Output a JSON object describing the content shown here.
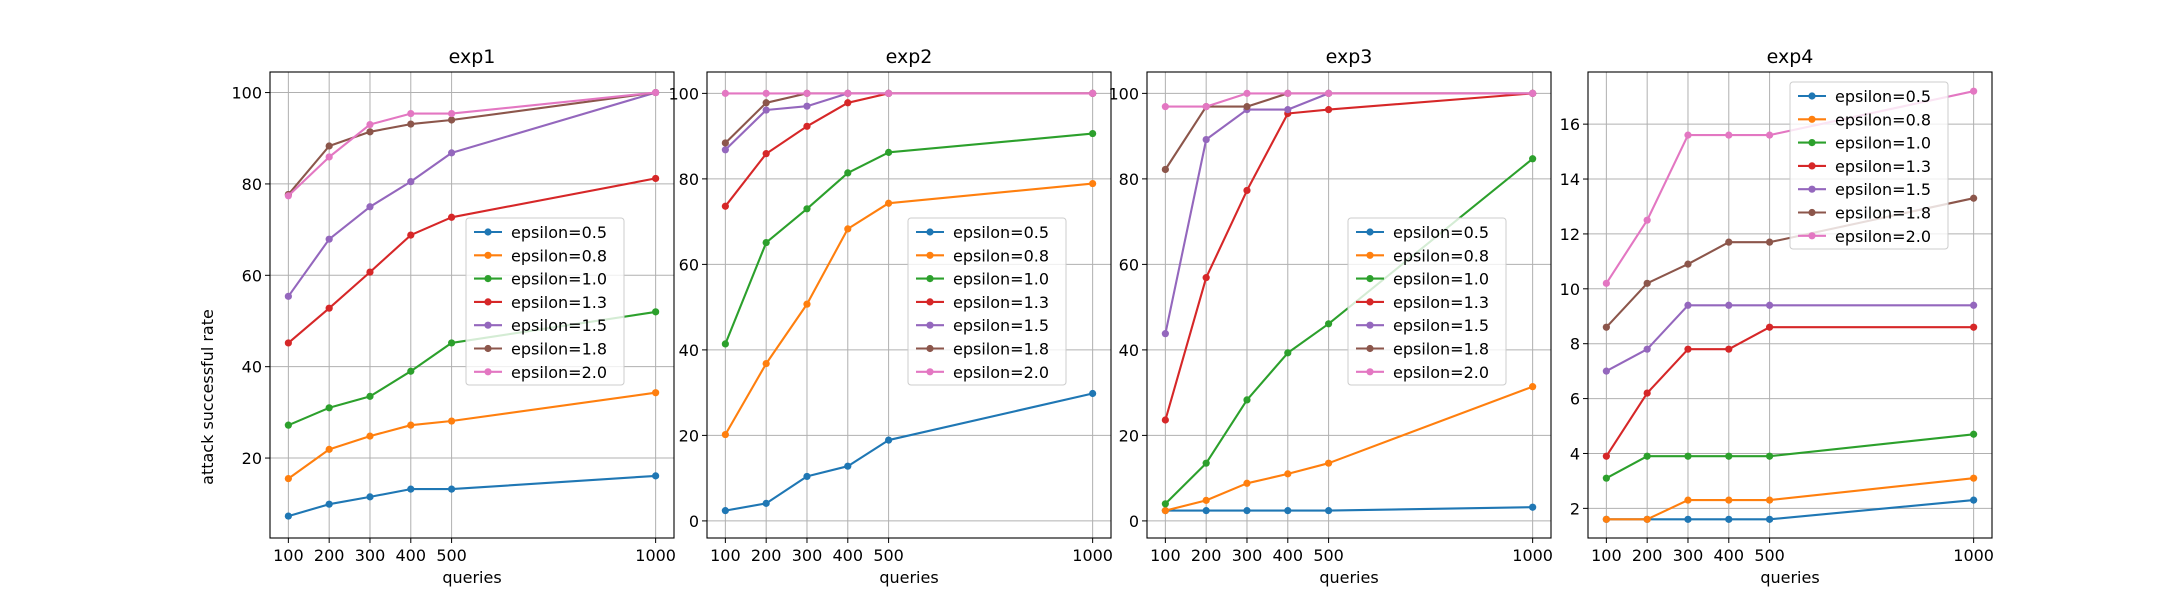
{
  "figure": {
    "ylabel": "attack successful rate",
    "xlabel": "queries"
  },
  "colors": {
    "epsilon=0.5": "#1f77b4",
    "epsilon=0.8": "#ff7f0e",
    "epsilon=1.0": "#2ca02c",
    "epsilon=1.3": "#d62728",
    "epsilon=1.5": "#9467bd",
    "epsilon=1.8": "#8c564b",
    "epsilon=2.0": "#e377c2"
  },
  "chart_data": [
    {
      "type": "line",
      "title": "exp1",
      "xlabel": "queries",
      "ylabel": "attack successful rate",
      "x": [
        100,
        200,
        300,
        400,
        500,
        1000
      ],
      "xticks": [
        "100",
        "200",
        "300",
        "400",
        "500",
        "1000"
      ],
      "xlim": [
        55,
        1045
      ],
      "yticks": [
        20,
        40,
        60,
        80,
        100
      ],
      "ylim": [
        2.5,
        104.5
      ],
      "grid": true,
      "legend": "center-right",
      "series": [
        {
          "name": "epsilon=0.5",
          "values": [
            7.3,
            9.9,
            11.5,
            13.2,
            13.2,
            16.1
          ]
        },
        {
          "name": "epsilon=0.8",
          "values": [
            15.5,
            21.9,
            24.8,
            27.2,
            28.1,
            34.3
          ]
        },
        {
          "name": "epsilon=1.0",
          "values": [
            27.2,
            31.0,
            33.5,
            39.0,
            45.2,
            52.0
          ]
        },
        {
          "name": "epsilon=1.3",
          "values": [
            45.2,
            52.8,
            60.7,
            68.8,
            72.7,
            81.2
          ]
        },
        {
          "name": "epsilon=1.5",
          "values": [
            55.4,
            67.9,
            75.0,
            80.5,
            86.8,
            100.0
          ]
        },
        {
          "name": "epsilon=1.8",
          "values": [
            77.7,
            88.3,
            91.4,
            93.1,
            94.0,
            100.0
          ]
        },
        {
          "name": "epsilon=2.0",
          "values": [
            77.4,
            85.9,
            93.0,
            95.4,
            95.4,
            100.0
          ]
        }
      ]
    },
    {
      "type": "line",
      "title": "exp2",
      "xlabel": "queries",
      "x": [
        100,
        200,
        300,
        400,
        500,
        1000
      ],
      "xticks": [
        "100",
        "200",
        "300",
        "400",
        "500",
        "1000"
      ],
      "xlim": [
        55,
        1045
      ],
      "yticks": [
        0,
        20,
        40,
        60,
        80,
        100
      ],
      "ylim": [
        -4.0,
        105.0
      ],
      "grid": true,
      "legend": "center-right",
      "series": [
        {
          "name": "epsilon=0.5",
          "values": [
            2.4,
            4.1,
            10.4,
            12.8,
            18.9,
            29.8
          ]
        },
        {
          "name": "epsilon=0.8",
          "values": [
            20.2,
            36.8,
            50.7,
            68.3,
            74.3,
            78.9
          ]
        },
        {
          "name": "epsilon=1.0",
          "values": [
            41.4,
            65.1,
            73.0,
            81.4,
            86.2,
            90.6
          ]
        },
        {
          "name": "epsilon=1.3",
          "values": [
            73.6,
            85.9,
            92.3,
            97.8,
            100.0,
            100.0
          ]
        },
        {
          "name": "epsilon=1.5",
          "values": [
            86.8,
            96.1,
            97.0,
            100.0,
            100.0,
            100.0
          ]
        },
        {
          "name": "epsilon=1.8",
          "values": [
            88.4,
            97.8,
            100.0,
            100.0,
            100.0,
            100.0
          ]
        },
        {
          "name": "epsilon=2.0",
          "values": [
            100.0,
            100.0,
            100.0,
            100.0,
            100.0,
            100.0
          ]
        }
      ]
    },
    {
      "type": "line",
      "title": "exp3",
      "xlabel": "queries",
      "x": [
        100,
        200,
        300,
        400,
        500,
        1000
      ],
      "xticks": [
        "100",
        "200",
        "300",
        "400",
        "500",
        "1000"
      ],
      "xlim": [
        55,
        1045
      ],
      "yticks": [
        0,
        20,
        40,
        60,
        80,
        100
      ],
      "ylim": [
        -4.0,
        105.0
      ],
      "grid": true,
      "legend": "center-right",
      "series": [
        {
          "name": "epsilon=0.5",
          "values": [
            2.4,
            2.4,
            2.4,
            2.4,
            2.4,
            3.2
          ]
        },
        {
          "name": "epsilon=0.8",
          "values": [
            2.4,
            4.8,
            8.8,
            11.0,
            13.5,
            31.4
          ]
        },
        {
          "name": "epsilon=1.0",
          "values": [
            4.0,
            13.5,
            28.3,
            39.3,
            46.1,
            84.7
          ]
        },
        {
          "name": "epsilon=1.3",
          "values": [
            23.6,
            56.9,
            77.3,
            95.3,
            96.2,
            100.0
          ]
        },
        {
          "name": "epsilon=1.5",
          "values": [
            43.8,
            89.2,
            96.2,
            96.2,
            100.0,
            100.0
          ]
        },
        {
          "name": "epsilon=1.8",
          "values": [
            82.2,
            96.9,
            96.9,
            100.0,
            100.0,
            100.0
          ]
        },
        {
          "name": "epsilon=2.0",
          "values": [
            96.9,
            96.9,
            100.0,
            100.0,
            100.0,
            100.0
          ]
        }
      ]
    },
    {
      "type": "line",
      "title": "exp4",
      "xlabel": "queries",
      "x": [
        100,
        200,
        300,
        400,
        500,
        1000
      ],
      "xticks": [
        "100",
        "200",
        "300",
        "400",
        "500",
        "1000"
      ],
      "xlim": [
        55,
        1045
      ],
      "yticks": [
        2,
        4,
        6,
        8,
        10,
        12,
        14,
        16
      ],
      "ylim": [
        0.92,
        17.9
      ],
      "grid": true,
      "legend": "upper-right",
      "series": [
        {
          "name": "epsilon=0.5",
          "values": [
            1.6,
            1.6,
            1.6,
            1.6,
            1.6,
            2.3
          ]
        },
        {
          "name": "epsilon=0.8",
          "values": [
            1.6,
            1.6,
            2.3,
            2.3,
            2.3,
            3.1
          ]
        },
        {
          "name": "epsilon=1.0",
          "values": [
            3.1,
            3.9,
            3.9,
            3.9,
            3.9,
            4.7
          ]
        },
        {
          "name": "epsilon=1.3",
          "values": [
            3.9,
            6.2,
            7.8,
            7.8,
            8.6,
            8.6
          ]
        },
        {
          "name": "epsilon=1.5",
          "values": [
            7.0,
            7.8,
            9.4,
            9.4,
            9.4,
            9.4
          ]
        },
        {
          "name": "epsilon=1.8",
          "values": [
            8.6,
            10.2,
            10.9,
            11.7,
            11.7,
            13.3
          ]
        },
        {
          "name": "epsilon=2.0",
          "values": [
            10.2,
            12.5,
            15.6,
            15.6,
            15.6,
            17.2
          ]
        }
      ]
    }
  ]
}
